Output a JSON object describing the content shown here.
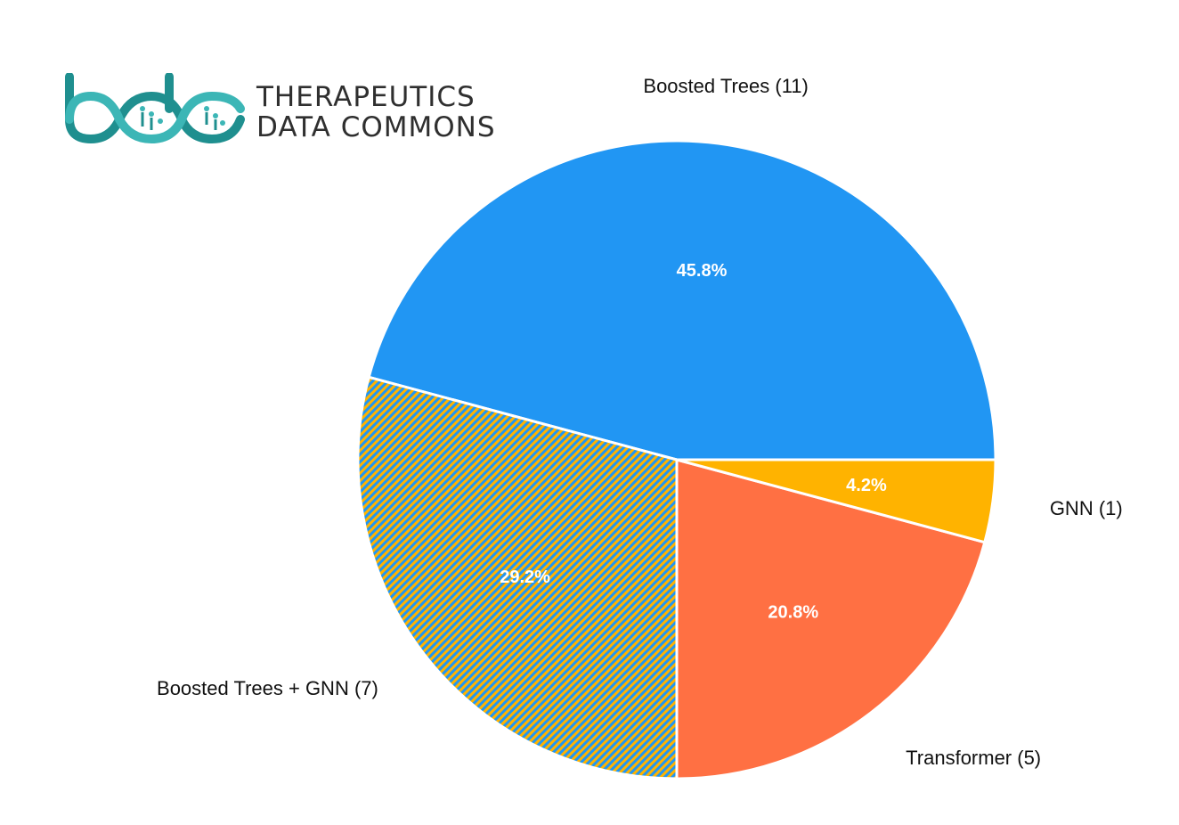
{
  "logo": {
    "line1": "THERAPEUTICS",
    "line2": "DATA COMMONS",
    "colors": [
      "#1f8f8f",
      "#3cb6b6"
    ]
  },
  "chart_data": {
    "type": "pie",
    "title": "",
    "start_angle_deg": 0,
    "direction": "counterclockwise",
    "slices": [
      {
        "label": "Boosted Trees (11)",
        "value": 11,
        "pct": "45.8%",
        "color": "#2196f3",
        "pattern": ""
      },
      {
        "label": "Boosted Trees + GNN (7)",
        "value": 7,
        "pct": "29.2%",
        "color": "#2196f3",
        "color2": "#ffb300",
        "pattern": "diagonal-hatch"
      },
      {
        "label": "Transformer (5)",
        "value": 5,
        "pct": "20.8%",
        "color": "#ff7043",
        "pattern": ""
      },
      {
        "label": "GNN (1)",
        "value": 1,
        "pct": "4.2%",
        "color": "#ffb300",
        "pattern": ""
      }
    ]
  }
}
